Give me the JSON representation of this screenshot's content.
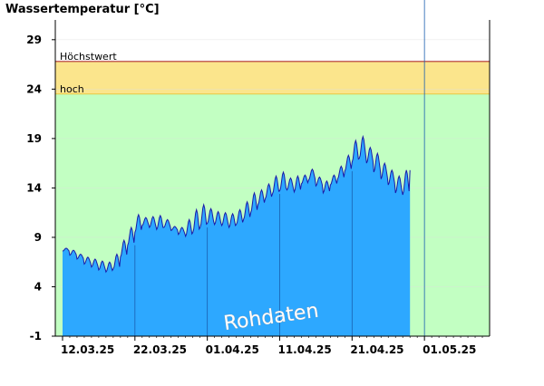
{
  "chart_data": {
    "type": "area",
    "title": "Wassertemperatur [°C]",
    "ylabel": "",
    "xlabel": "",
    "ylim": [
      -1,
      31
    ],
    "yticks": [
      -1,
      4,
      9,
      14,
      19,
      24,
      29
    ],
    "xticks": [
      "12.03.25",
      "22.03.25",
      "01.04.25",
      "11.04.25",
      "21.04.25",
      "01.05.25"
    ],
    "x_range_days": [
      -1,
      59
    ],
    "bands": [
      {
        "label": "Höchstwert",
        "value": 26.8,
        "color": "#b03030"
      },
      {
        "label": "hoch",
        "value": 23.5,
        "color": "#fbe58c"
      },
      {
        "label": "",
        "value": -1,
        "color": "#c2ffc2"
      }
    ],
    "annotation": "Rohdaten",
    "grid": true,
    "legend": "none",
    "series": [
      {
        "color_fill": "#2da8ff",
        "color_line": "#1a1aa8",
        "daily_min": [
          7.6,
          7.2,
          6.8,
          6.3,
          6.0,
          5.7,
          5.5,
          5.8,
          7.0,
          8.2,
          9.5,
          10.2,
          10.0,
          9.8,
          10.0,
          9.7,
          9.3,
          9.1,
          9.5,
          10.0,
          10.4,
          10.3,
          10.2,
          10.0,
          10.3,
          10.8,
          11.5,
          12.3,
          12.9,
          13.4,
          13.7,
          13.8,
          13.6,
          14.4,
          14.8,
          14.2,
          13.5,
          14.3,
          14.9,
          15.7,
          16.6,
          17.0,
          16.5,
          15.6,
          14.9,
          14.3,
          13.5,
          13.3
        ],
        "daily_max": [
          7.9,
          7.7,
          7.3,
          7.0,
          6.8,
          6.6,
          6.5,
          7.3,
          8.7,
          10.0,
          11.3,
          11.0,
          11.1,
          11.2,
          10.8,
          10.1,
          10.0,
          10.8,
          11.8,
          12.3,
          11.9,
          11.6,
          11.5,
          11.4,
          11.8,
          12.6,
          13.5,
          13.8,
          14.4,
          15.2,
          15.6,
          15.0,
          15.2,
          15.3,
          15.9,
          15.1,
          14.7,
          15.3,
          16.2,
          17.3,
          18.8,
          19.2,
          18.1,
          17.5,
          16.5,
          15.8,
          15.2,
          15.8
        ]
      }
    ]
  }
}
